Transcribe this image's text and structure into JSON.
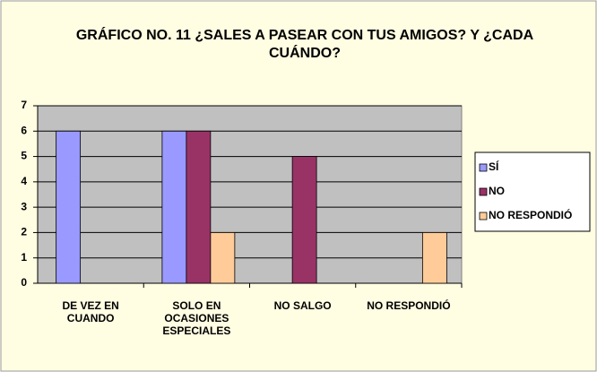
{
  "chart_data": {
    "type": "bar",
    "title": "GRÁFICO NO. 11 ¿SALES A PASEAR CON TUS AMIGOS? Y ¿CADA CUÁNDO?",
    "categories": [
      "DE VEZ EN CUANDO",
      "SOLO EN OCASIONES ESPECIALES",
      "NO SALGO",
      "NO RESPONDIÓ"
    ],
    "series": [
      {
        "name": "SÍ",
        "color": "#9999ff",
        "values": [
          6,
          6,
          0,
          0
        ]
      },
      {
        "name": "NO",
        "color": "#993366",
        "values": [
          0,
          6,
          5,
          0
        ]
      },
      {
        "name": "NO RESPONDIÓ",
        "color": "#ffcc99",
        "values": [
          0,
          2,
          0,
          2
        ]
      }
    ],
    "ylim": [
      0,
      7
    ],
    "yticks": [
      0,
      1,
      2,
      3,
      4,
      5,
      6,
      7
    ],
    "grid": true,
    "legend": "right"
  }
}
